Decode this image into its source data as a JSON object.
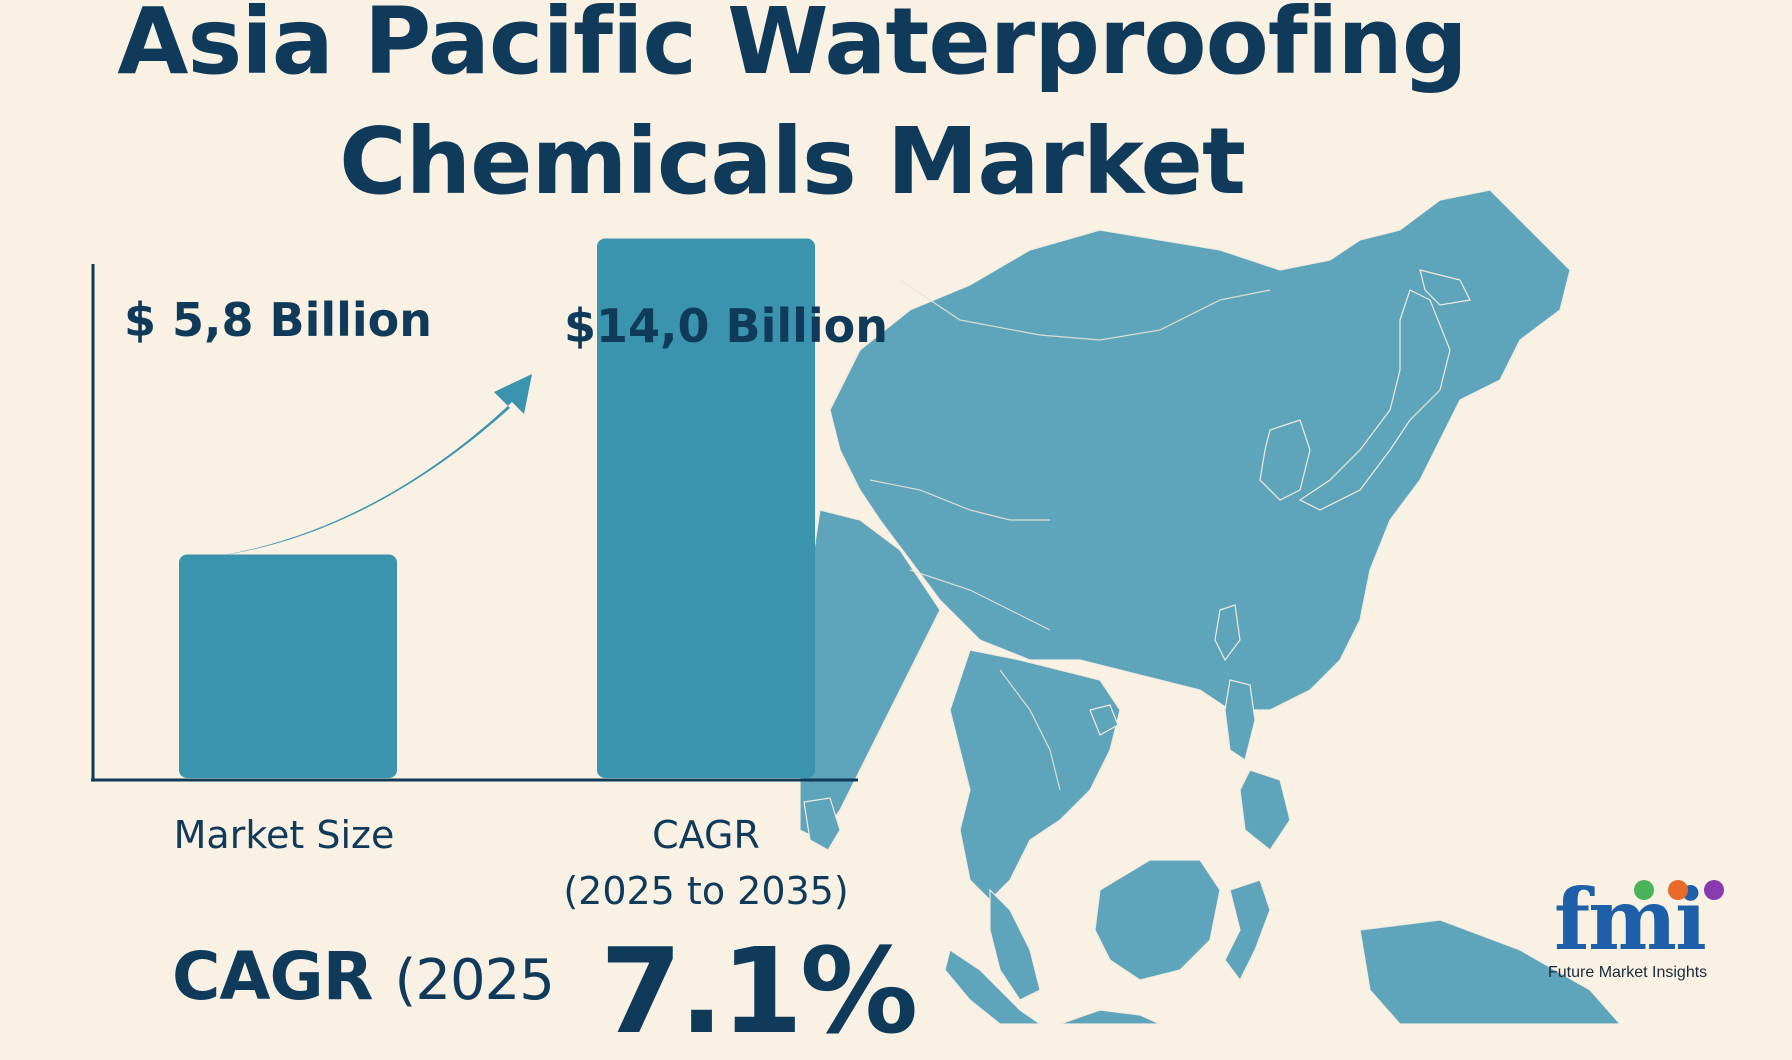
{
  "title": {
    "line1": "Asia Pacific Waterproofing",
    "line2": "Chemicals Market"
  },
  "chart_data": {
    "type": "bar",
    "categories": [
      "Market Size",
      "CAGR\n(2025 to 2035)"
    ],
    "values": [
      5.8,
      14.0
    ],
    "value_labels": [
      "$ 5,8 Billion",
      "$14,0 Billion"
    ],
    "category_labels": {
      "first": "Market Size",
      "second_line1": "CAGR",
      "second_line2": "(2025 to 2035)"
    },
    "unit": "Billion USD",
    "ylim": [
      0,
      15
    ],
    "grid": false,
    "title": "",
    "xlabel": "",
    "ylabel": ""
  },
  "cagr": {
    "label": "CAGR",
    "label_suffix": "(2025",
    "value": "7.1%"
  },
  "logo": {
    "mark": "fmi",
    "text": "Future Market Insights"
  },
  "colors": {
    "background": "#f9f1e4",
    "text": "#0f3a5a",
    "bar": "#3a94ad",
    "map": "#5ea4ba"
  }
}
